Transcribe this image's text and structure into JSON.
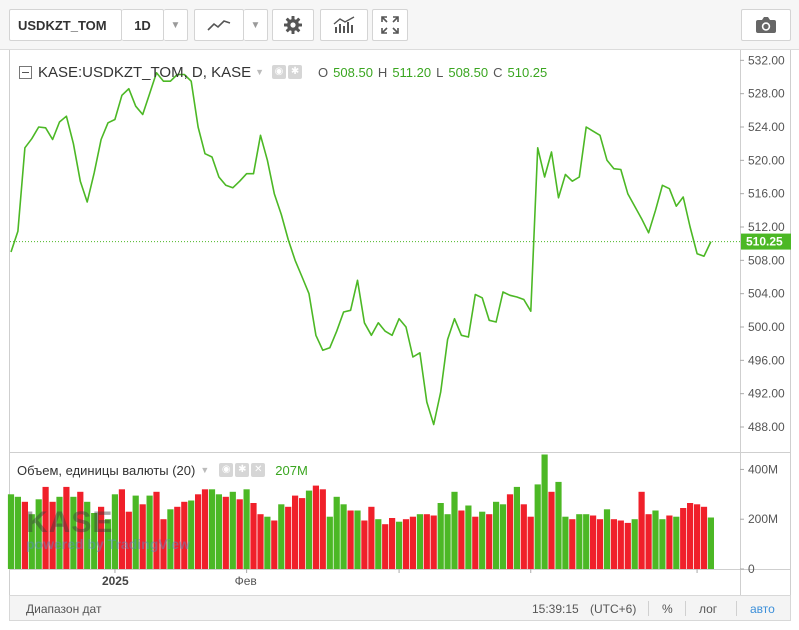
{
  "toolbar": {
    "symbol": "USDKZT_TOM",
    "interval": "1D",
    "caret": "▼"
  },
  "legend": {
    "title": "KASE:USDKZT_TOM, D, KASE",
    "open_label": "O",
    "open": "508.50",
    "high_label": "H",
    "high": "511.20",
    "low_label": "L",
    "low": "508.50",
    "close_label": "C",
    "close": "510.25"
  },
  "volume_legend": {
    "label": "Объем, единицы валюты (20)",
    "value": "207M"
  },
  "watermark": {
    "logo": "KASE",
    "powered_by": "powered by TradingView"
  },
  "bottom_bar": {
    "date_range": "Диапазон дат",
    "time": "15:39:15",
    "timezone": "(UTC+6)",
    "percent": "%",
    "log": "лог",
    "auto": "авто"
  },
  "chart_data": [
    {
      "type": "line",
      "title": "KASE:USDKZT_TOM, D, KASE",
      "color": "#4cb825",
      "ylim": [
        485,
        533
      ],
      "y_ticks": [
        488,
        492,
        496,
        500,
        504,
        508,
        512,
        516,
        520,
        524,
        528,
        532
      ],
      "y_tick_labels": [
        "488.00",
        "492.00",
        "496.00",
        "500.00",
        "504.00",
        "508.00",
        "512.00",
        "516.00",
        "520.00",
        "524.00",
        "528.00",
        "532.00"
      ],
      "x_tick_labels": [
        "2025",
        "Фев"
      ],
      "last_value": 510.25,
      "last_value_label": "510.25",
      "grid": false,
      "values": [
        509.0,
        511.5,
        521.5,
        522.6,
        524.0,
        523.9,
        522.5,
        524.6,
        525.3,
        522.0,
        517.5,
        515.0,
        518.5,
        522.5,
        524.5,
        524.9,
        527.8,
        528.6,
        526.5,
        525.5,
        528.0,
        530.5,
        529.5,
        529.5,
        530.3,
        530.3,
        529.5,
        524.0,
        520.8,
        520.4,
        518.0,
        517.0,
        516.7,
        517.5,
        518.4,
        518.4,
        523.0,
        520.0,
        516.0,
        513.5,
        510.5,
        508.0,
        506.0,
        504.0,
        499.0,
        497.2,
        497.5,
        499.5,
        501.8,
        502.0,
        505.6,
        500.5,
        499.0,
        500.5,
        499.5,
        499.0,
        501.0,
        500.0,
        496.4,
        496.9,
        491.0,
        488.3,
        492.2,
        498.5,
        501.0,
        499.0,
        498.8,
        503.9,
        503.5,
        500.8,
        500.6,
        504.2,
        503.8,
        503.6,
        503.3,
        501.9,
        521.5,
        518.0,
        521.0,
        515.5,
        518.3,
        517.5,
        518.0,
        524.0,
        523.5,
        523.0,
        520.0,
        519.0,
        518.9,
        516.0,
        514.5,
        513.0,
        511.3,
        514.0,
        517.0,
        516.6,
        514.5,
        515.6,
        512.0,
        508.8,
        508.5,
        510.25
      ],
      "date_tick_index": [
        15,
        34,
        56,
        75,
        99
      ]
    },
    {
      "type": "bar",
      "title": "Объем, единицы валюты (20)",
      "ylim": [
        0,
        470
      ],
      "y_ticks": [
        0,
        200,
        400
      ],
      "y_tick_labels": [
        "0",
        "200M",
        "400M"
      ],
      "up_color": "#4cb825",
      "down_color": "#f0202a",
      "values": [
        300,
        290,
        270,
        220,
        280,
        330,
        270,
        290,
        330,
        290,
        310,
        270,
        225,
        250,
        200,
        300,
        320,
        230,
        295,
        260,
        295,
        310,
        200,
        240,
        250,
        270,
        275,
        300,
        320,
        320,
        300,
        290,
        310,
        280,
        320,
        265,
        220,
        210,
        195,
        260,
        250,
        295,
        285,
        315,
        335,
        320,
        210,
        290,
        260,
        235,
        235,
        195,
        250,
        200,
        180,
        205,
        190,
        200,
        210,
        220,
        220,
        215,
        265,
        220,
        310,
        235,
        255,
        210,
        230,
        220,
        270,
        260,
        300,
        330,
        260,
        210,
        340,
        460,
        310,
        350,
        210,
        200,
        220,
        220,
        215,
        200,
        240,
        200,
        195,
        185,
        200,
        310,
        220,
        235,
        200,
        215,
        210,
        245,
        265,
        260,
        250,
        207
      ],
      "up": [
        true,
        true,
        false,
        true,
        true,
        false,
        false,
        true,
        false,
        true,
        false,
        true,
        true,
        false,
        true,
        true,
        false,
        false,
        true,
        false,
        true,
        false,
        false,
        true,
        false,
        false,
        true,
        false,
        false,
        true,
        true,
        false,
        true,
        false,
        true,
        false,
        false,
        true,
        false,
        true,
        false,
        false,
        false,
        true,
        false,
        false,
        true,
        true,
        true,
        false,
        true,
        false,
        false,
        true,
        false,
        false,
        true,
        false,
        false,
        true,
        false,
        false,
        true,
        true,
        true,
        false,
        true,
        false,
        true,
        false,
        true,
        true,
        false,
        true,
        false,
        false,
        true,
        true,
        false,
        true,
        true,
        false,
        true,
        true,
        false,
        false,
        true,
        false,
        false,
        false,
        true,
        false,
        false,
        true,
        true,
        false,
        true,
        false,
        false,
        false,
        false,
        true
      ]
    }
  ]
}
